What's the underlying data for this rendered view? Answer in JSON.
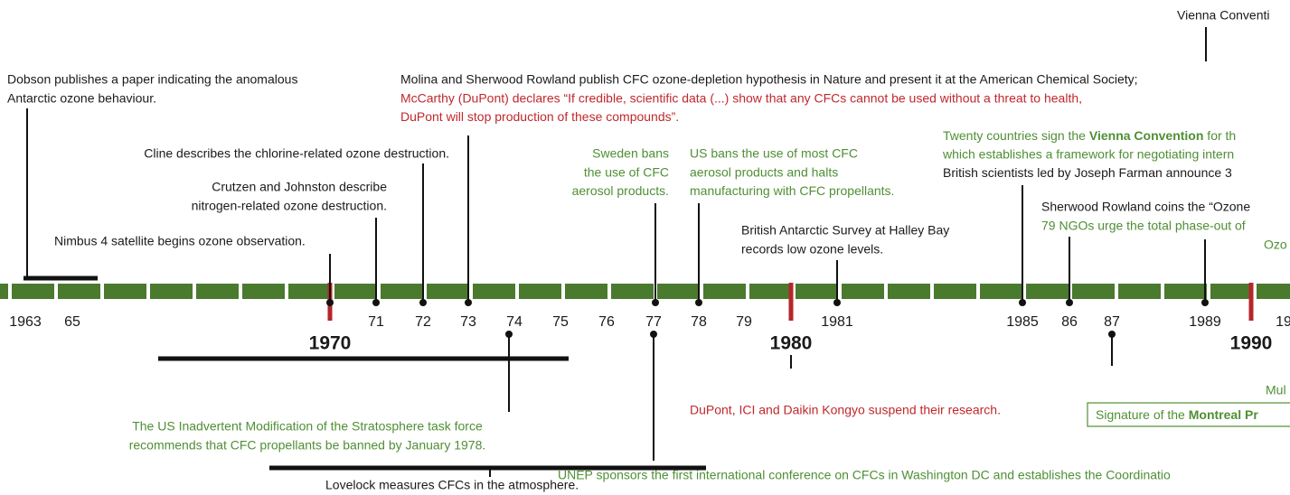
{
  "years": [
    "1963",
    "65",
    "71",
    "72",
    "73",
    "74",
    "75",
    "76",
    "77",
    "78",
    "79",
    "1981",
    "1985",
    "86",
    "87",
    "1989",
    "19"
  ],
  "decades": [
    "1970",
    "1980",
    "1990"
  ],
  "events": [
    {
      "lines": [
        "Vienna Conventi"
      ]
    },
    {
      "lines": [
        "Dobson publishes a paper indicating the anomalous",
        "Antarctic ozone behaviour."
      ]
    },
    {
      "lines": [
        "Molina and Sherwood Rowland publish CFC ozone-depletion hypothesis in Nature and present it at the American Chemical Society;",
        "McCarthy (DuPont) declares “If credible, scientific data (...) show that any CFCs cannot be used without a threat to health,",
        "DuPont will stop production of these compounds”."
      ]
    },
    {
      "lines": [
        "Cline describes the chlorine-related ozone destruction."
      ]
    },
    {
      "lines": [
        "Crutzen and Johnston describe",
        "nitrogen-related ozone destruction."
      ]
    },
    {
      "lines": [
        "Nimbus 4 satellite begins ozone observation."
      ]
    },
    {
      "lines": [
        "Sweden bans",
        "the use of  CFC",
        "aerosol products."
      ]
    },
    {
      "lines": [
        "US bans the use of most CFC",
        "aerosol products and halts",
        "manufacturing with CFC propellants."
      ]
    },
    {
      "lines": [
        "British Antarctic Survey at Halley Bay",
        "records low ozone levels."
      ]
    },
    {
      "lines": [
        [
          "Twenty countries sign the ",
          "Vienna Convention",
          " for th"
        ],
        "which establishes a framework for negotiating intern",
        "British scientists led by Joseph Farman announce 3"
      ]
    },
    {
      "lines": [
        "Sherwood Rowland coins the “Ozone",
        "79 NGOs urge the total phase-out of"
      ]
    },
    {
      "lines": [
        "Ozo"
      ]
    },
    {
      "lines": [
        "The US Inadvertent Modification of the Stratosphere task force",
        "recommends that CFC propellants be banned by January 1978."
      ]
    },
    {
      "lines": [
        "UNEP sponsors the first international conference on CFCs in Washington DC and establishes the Coordinatio"
      ]
    },
    {
      "lines": [
        "Lovelock measures CFCs in the atmosphere."
      ]
    },
    {
      "lines": [
        "DuPont, ICI and Daikin Kongyo suspend their research."
      ]
    },
    {
      "lines": [
        [
          "Signature of the ",
          "Montreal Pr"
        ]
      ]
    },
    {
      "lines": [
        "Mul"
      ]
    }
  ]
}
